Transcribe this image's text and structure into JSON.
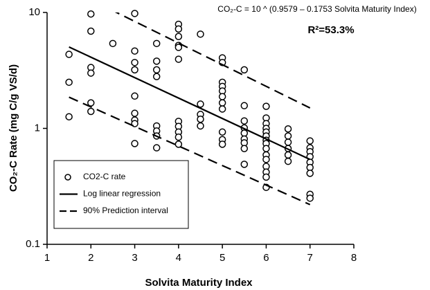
{
  "chart_data": {
    "type": "scatter",
    "annotations": [
      "CO₂-C = 10 ^ (0.9579 – 0.1753 Solvita Maturity Index)",
      "R²=53.3%"
    ],
    "x_label": "Solvita Maturity Index",
    "y_label": "CO₂-C Rate (mg C/g VS/d)",
    "xlim": [
      1,
      8
    ],
    "xticks": [
      1,
      2,
      3,
      4,
      5,
      6,
      7,
      8
    ],
    "ylim": [
      0.1,
      10
    ],
    "yticks": [
      0.1,
      1,
      10
    ],
    "ylog": true,
    "grid": false,
    "legend": "lower-left",
    "series": [
      {
        "name": "CO2-C rate",
        "style": "markers",
        "color": "#000000",
        "x": [
          1.5,
          1.5,
          1.5,
          2,
          2,
          2,
          2,
          2,
          2,
          2.5,
          3,
          3,
          3,
          3,
          3,
          3,
          3,
          3,
          3,
          3.5,
          3.5,
          3.5,
          3.5,
          3.5,
          3.5,
          3.5,
          3.5,
          4,
          4,
          4,
          4,
          4,
          4,
          4,
          4,
          4,
          4,
          4,
          4.5,
          4.5,
          4.5,
          4.5,
          4.5,
          5,
          5,
          5,
          5,
          5,
          5,
          5,
          5,
          5,
          5,
          5,
          5.5,
          5.5,
          5.5,
          5.5,
          5.5,
          5.5,
          5.5,
          5.5,
          5.5,
          6,
          6,
          6,
          6,
          6,
          6,
          6,
          6,
          6,
          6,
          6,
          6,
          6,
          6,
          6,
          6.5,
          6.5,
          6.5,
          6.5,
          6.5,
          6.5,
          7,
          7,
          7,
          7,
          7,
          7,
          7,
          7,
          7
        ],
        "values": [
          4.35,
          2.5,
          1.26,
          9.7,
          6.9,
          3.35,
          3.0,
          1.66,
          1.4,
          5.4,
          9.8,
          4.65,
          3.7,
          3.2,
          1.9,
          1.35,
          1.18,
          1.1,
          0.74,
          5.4,
          3.8,
          3.2,
          2.8,
          1.05,
          0.95,
          0.86,
          0.68,
          7.9,
          7.2,
          6.2,
          5.2,
          5.0,
          3.95,
          1.15,
          1.04,
          0.93,
          0.84,
          0.73,
          6.5,
          1.62,
          1.32,
          1.2,
          1.05,
          4.06,
          3.7,
          2.5,
          2.3,
          2.1,
          1.88,
          1.66,
          1.47,
          0.93,
          0.8,
          0.73,
          3.2,
          1.57,
          1.16,
          1.01,
          0.91,
          0.81,
          0.75,
          0.67,
          0.49,
          1.55,
          1.23,
          1.1,
          1.0,
          0.93,
          0.86,
          0.79,
          0.74,
          0.67,
          0.59,
          0.54,
          0.47,
          0.42,
          0.38,
          0.31,
          0.99,
          0.86,
          0.76,
          0.67,
          0.59,
          0.52,
          0.78,
          0.68,
          0.63,
          0.57,
          0.51,
          0.46,
          0.41,
          0.27,
          0.25
        ]
      },
      {
        "name": "Log linear regression",
        "style": "solid",
        "color": "#000000",
        "x": [
          1.5,
          7
        ],
        "values": [
          5.04,
          0.54
        ]
      },
      {
        "name": "90% Prediction interval",
        "style": "dashed",
        "color": "#000000",
        "upper": {
          "x": [
            2.45,
            7
          ],
          "values": [
            10.6,
            1.5
          ]
        },
        "lower": {
          "x": [
            1.5,
            7
          ],
          "values": [
            1.86,
            0.22
          ]
        }
      }
    ]
  }
}
